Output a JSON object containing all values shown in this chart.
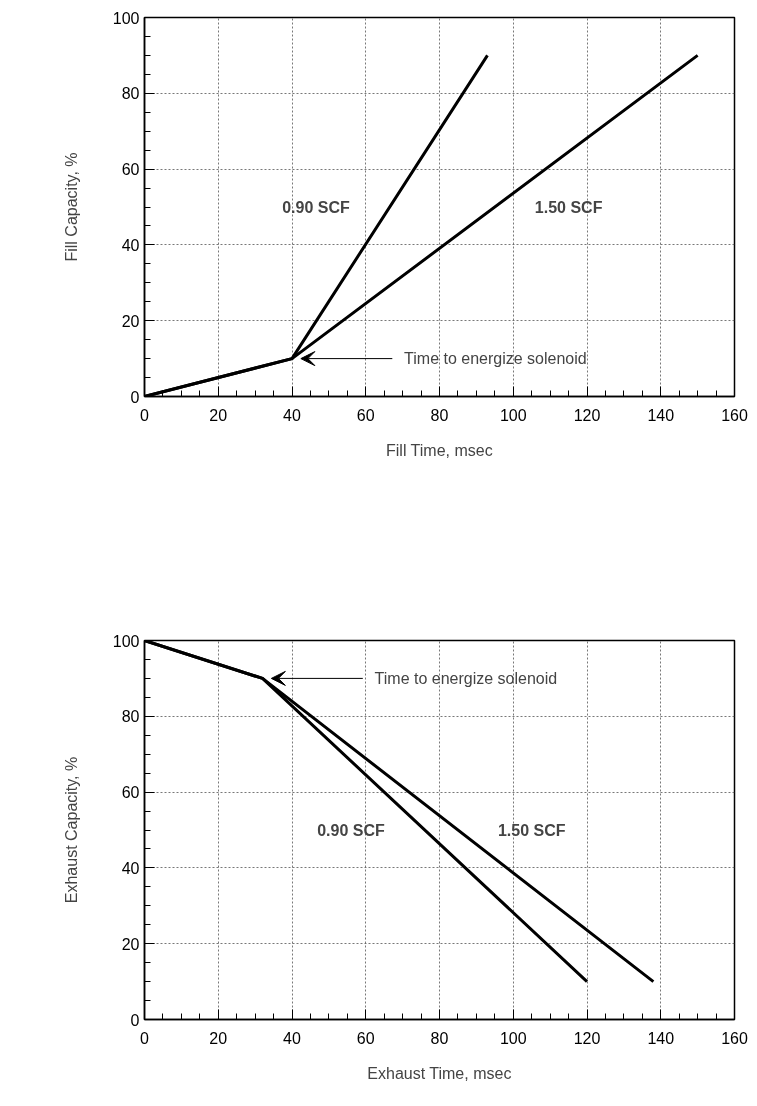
{
  "chart_data": [
    {
      "type": "line",
      "xlabel": "Fill Time, msec",
      "ylabel": "Fill Capacity, %",
      "xlim": [
        0,
        160
      ],
      "ylim": [
        0,
        100
      ],
      "xticks": [
        0,
        20,
        40,
        60,
        80,
        100,
        120,
        140,
        160
      ],
      "yticks": [
        0,
        20,
        40,
        60,
        80,
        100
      ],
      "grid": true,
      "legend": false,
      "line_style": "solid",
      "marker": "none",
      "series": [
        {
          "name": "0.90 SCF",
          "color": "#000000",
          "x": [
            0,
            40,
            93
          ],
          "values": [
            0,
            10,
            90
          ]
        },
        {
          "name": "1.50 SCF",
          "color": "#000000",
          "x": [
            0,
            40,
            150
          ],
          "values": [
            0,
            10,
            90
          ]
        }
      ],
      "annotations": [
        {
          "text": "Time to energize solenoid",
          "x": 40,
          "y": 10
        }
      ]
    },
    {
      "type": "line",
      "xlabel": "Exhaust Time, msec",
      "ylabel": "Exhaust Capacity, %",
      "xlim": [
        0,
        160
      ],
      "ylim": [
        0,
        100
      ],
      "xticks": [
        0,
        20,
        40,
        60,
        80,
        100,
        120,
        140,
        160
      ],
      "yticks": [
        0,
        20,
        40,
        60,
        80,
        100
      ],
      "grid": true,
      "legend": false,
      "line_style": "solid",
      "marker": "none",
      "series": [
        {
          "name": "0.90 SCF",
          "color": "#000000",
          "x": [
            0,
            32,
            120
          ],
          "values": [
            100,
            90,
            10
          ]
        },
        {
          "name": "1.50 SCF",
          "color": "#000000",
          "x": [
            0,
            32,
            138
          ],
          "values": [
            100,
            90,
            10
          ]
        }
      ],
      "annotations": [
        {
          "text": "Time to energize solenoid",
          "x": 32,
          "y": 90
        }
      ]
    }
  ]
}
